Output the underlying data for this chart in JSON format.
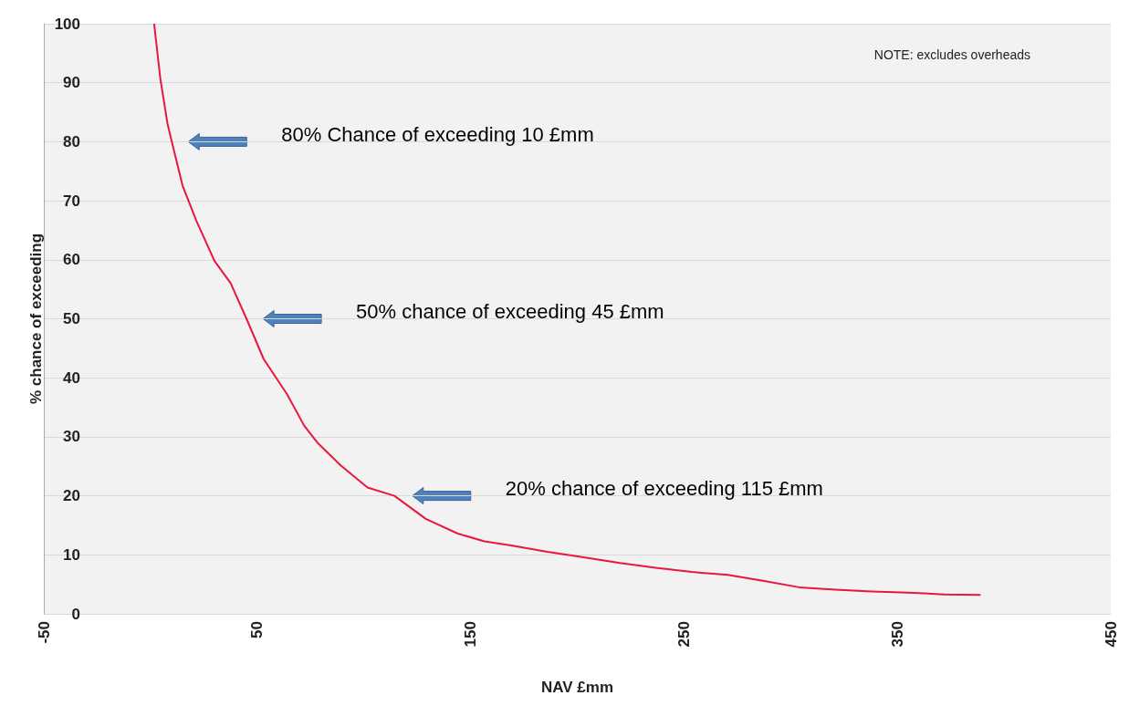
{
  "chart_data": {
    "type": "line",
    "xlabel": "NAV £mm",
    "ylabel": "% chance of exceeding",
    "x": [
      1.7,
      4.6,
      8,
      10,
      15,
      21.5,
      30,
      37.6,
      45,
      53,
      64,
      72,
      78.5,
      89,
      101.7,
      114.3,
      129,
      144,
      156.5,
      169,
      186,
      203,
      220,
      236.7,
      253.6,
      270.5,
      287,
      304,
      321,
      338,
      355,
      372,
      389
    ],
    "series": [
      {
        "color": "#e8173f",
        "values": [
          100,
          90.7,
          83,
          80,
          72.6,
          66.6,
          59.8,
          56,
          50,
          43.2,
          37.2,
          31.9,
          28.9,
          25.2,
          21.4,
          20,
          16.1,
          13.6,
          12.3,
          11.6,
          10.5,
          9.6,
          8.6,
          7.8,
          7.1,
          6.6,
          5.6,
          4.5,
          4.1,
          3.8,
          3.6,
          3.3,
          3.2
        ]
      }
    ],
    "xlim": [
      -50,
      450
    ],
    "xticks": [
      -50,
      50,
      150,
      250,
      350,
      450
    ],
    "ylim": [
      0,
      100
    ],
    "yticks": [
      0,
      10,
      20,
      30,
      40,
      50,
      60,
      70,
      80,
      90,
      100
    ],
    "grid": "y",
    "marker": "none",
    "line_style": "solid",
    "annotations": [
      "80% Chance of exceeding 10 £mm",
      "50% chance of exceeding 45 £mm",
      "20% chance of exceeding 115 £mm",
      "NOTE: excludes overheads"
    ]
  }
}
